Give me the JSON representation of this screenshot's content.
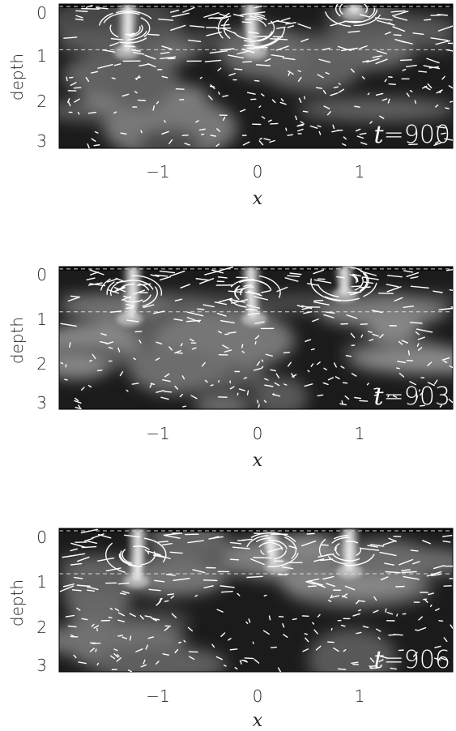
{
  "chart_data": [
    {
      "type": "heatmap",
      "time_label": {
        "var": "t",
        "value": "900"
      },
      "xlabel": "x",
      "ylabel": "depth",
      "xticks": [
        "−1",
        "0",
        "1"
      ],
      "xtick_values": [
        -1,
        0,
        1
      ],
      "yticks": [
        "0",
        "1",
        "2",
        "3"
      ],
      "ytick_values": [
        0,
        1,
        2,
        3
      ],
      "xlim": [
        -2,
        2
      ],
      "ylim": [
        3,
        0
      ],
      "interface_depths": [
        0.05,
        0.95
      ],
      "plumes": [
        {
          "x": -1.3,
          "from": 0.0,
          "to": 1.0,
          "tilt": -0.05
        },
        {
          "x": -0.05,
          "from": 0.0,
          "to": 1.0,
          "tilt": 0.1
        },
        {
          "x": 1.0,
          "from": 0.0,
          "to": 0.2,
          "tilt": 0.0
        }
      ],
      "seed": 11
    },
    {
      "type": "heatmap",
      "time_label": {
        "var": "t",
        "value": "903"
      },
      "xlabel": "x",
      "ylabel": "depth",
      "xticks": [
        "−1",
        "0",
        "1"
      ],
      "xtick_values": [
        -1,
        0,
        1
      ],
      "yticks": [
        "0",
        "1",
        "2",
        "3"
      ],
      "ytick_values": [
        0,
        1,
        2,
        3
      ],
      "xlim": [
        -2,
        2
      ],
      "ylim": [
        3,
        0
      ],
      "interface_depths": [
        0.05,
        0.95
      ],
      "plumes": [
        {
          "x": -1.25,
          "from": 0.0,
          "to": 1.1,
          "tilt": -0.1
        },
        {
          "x": -0.05,
          "from": 0.0,
          "to": 1.1,
          "tilt": 0.1
        },
        {
          "x": 0.9,
          "from": 0.0,
          "to": 0.6,
          "tilt": 0.0
        }
      ],
      "seed": 23
    },
    {
      "type": "heatmap",
      "time_label": {
        "var": "t",
        "value": "906"
      },
      "xlabel": "x",
      "ylabel": "depth",
      "xticks": [
        "−1",
        "0",
        "1"
      ],
      "xtick_values": [
        -1,
        0,
        1
      ],
      "yticks": [
        "0",
        "1",
        "2",
        "3"
      ],
      "ytick_values": [
        0,
        1,
        2,
        3
      ],
      "xlim": [
        -2,
        2
      ],
      "ylim": [
        3,
        0
      ],
      "interface_depths": [
        0.05,
        0.95
      ],
      "plumes": [
        {
          "x": -1.2,
          "from": 0.0,
          "to": 1.1,
          "tilt": -0.05
        },
        {
          "x": 0.15,
          "from": 0.1,
          "to": 0.8,
          "tilt": 0.2
        },
        {
          "x": 0.95,
          "from": 0.0,
          "to": 0.9,
          "tilt": 0.0
        }
      ],
      "seed": 37
    }
  ]
}
